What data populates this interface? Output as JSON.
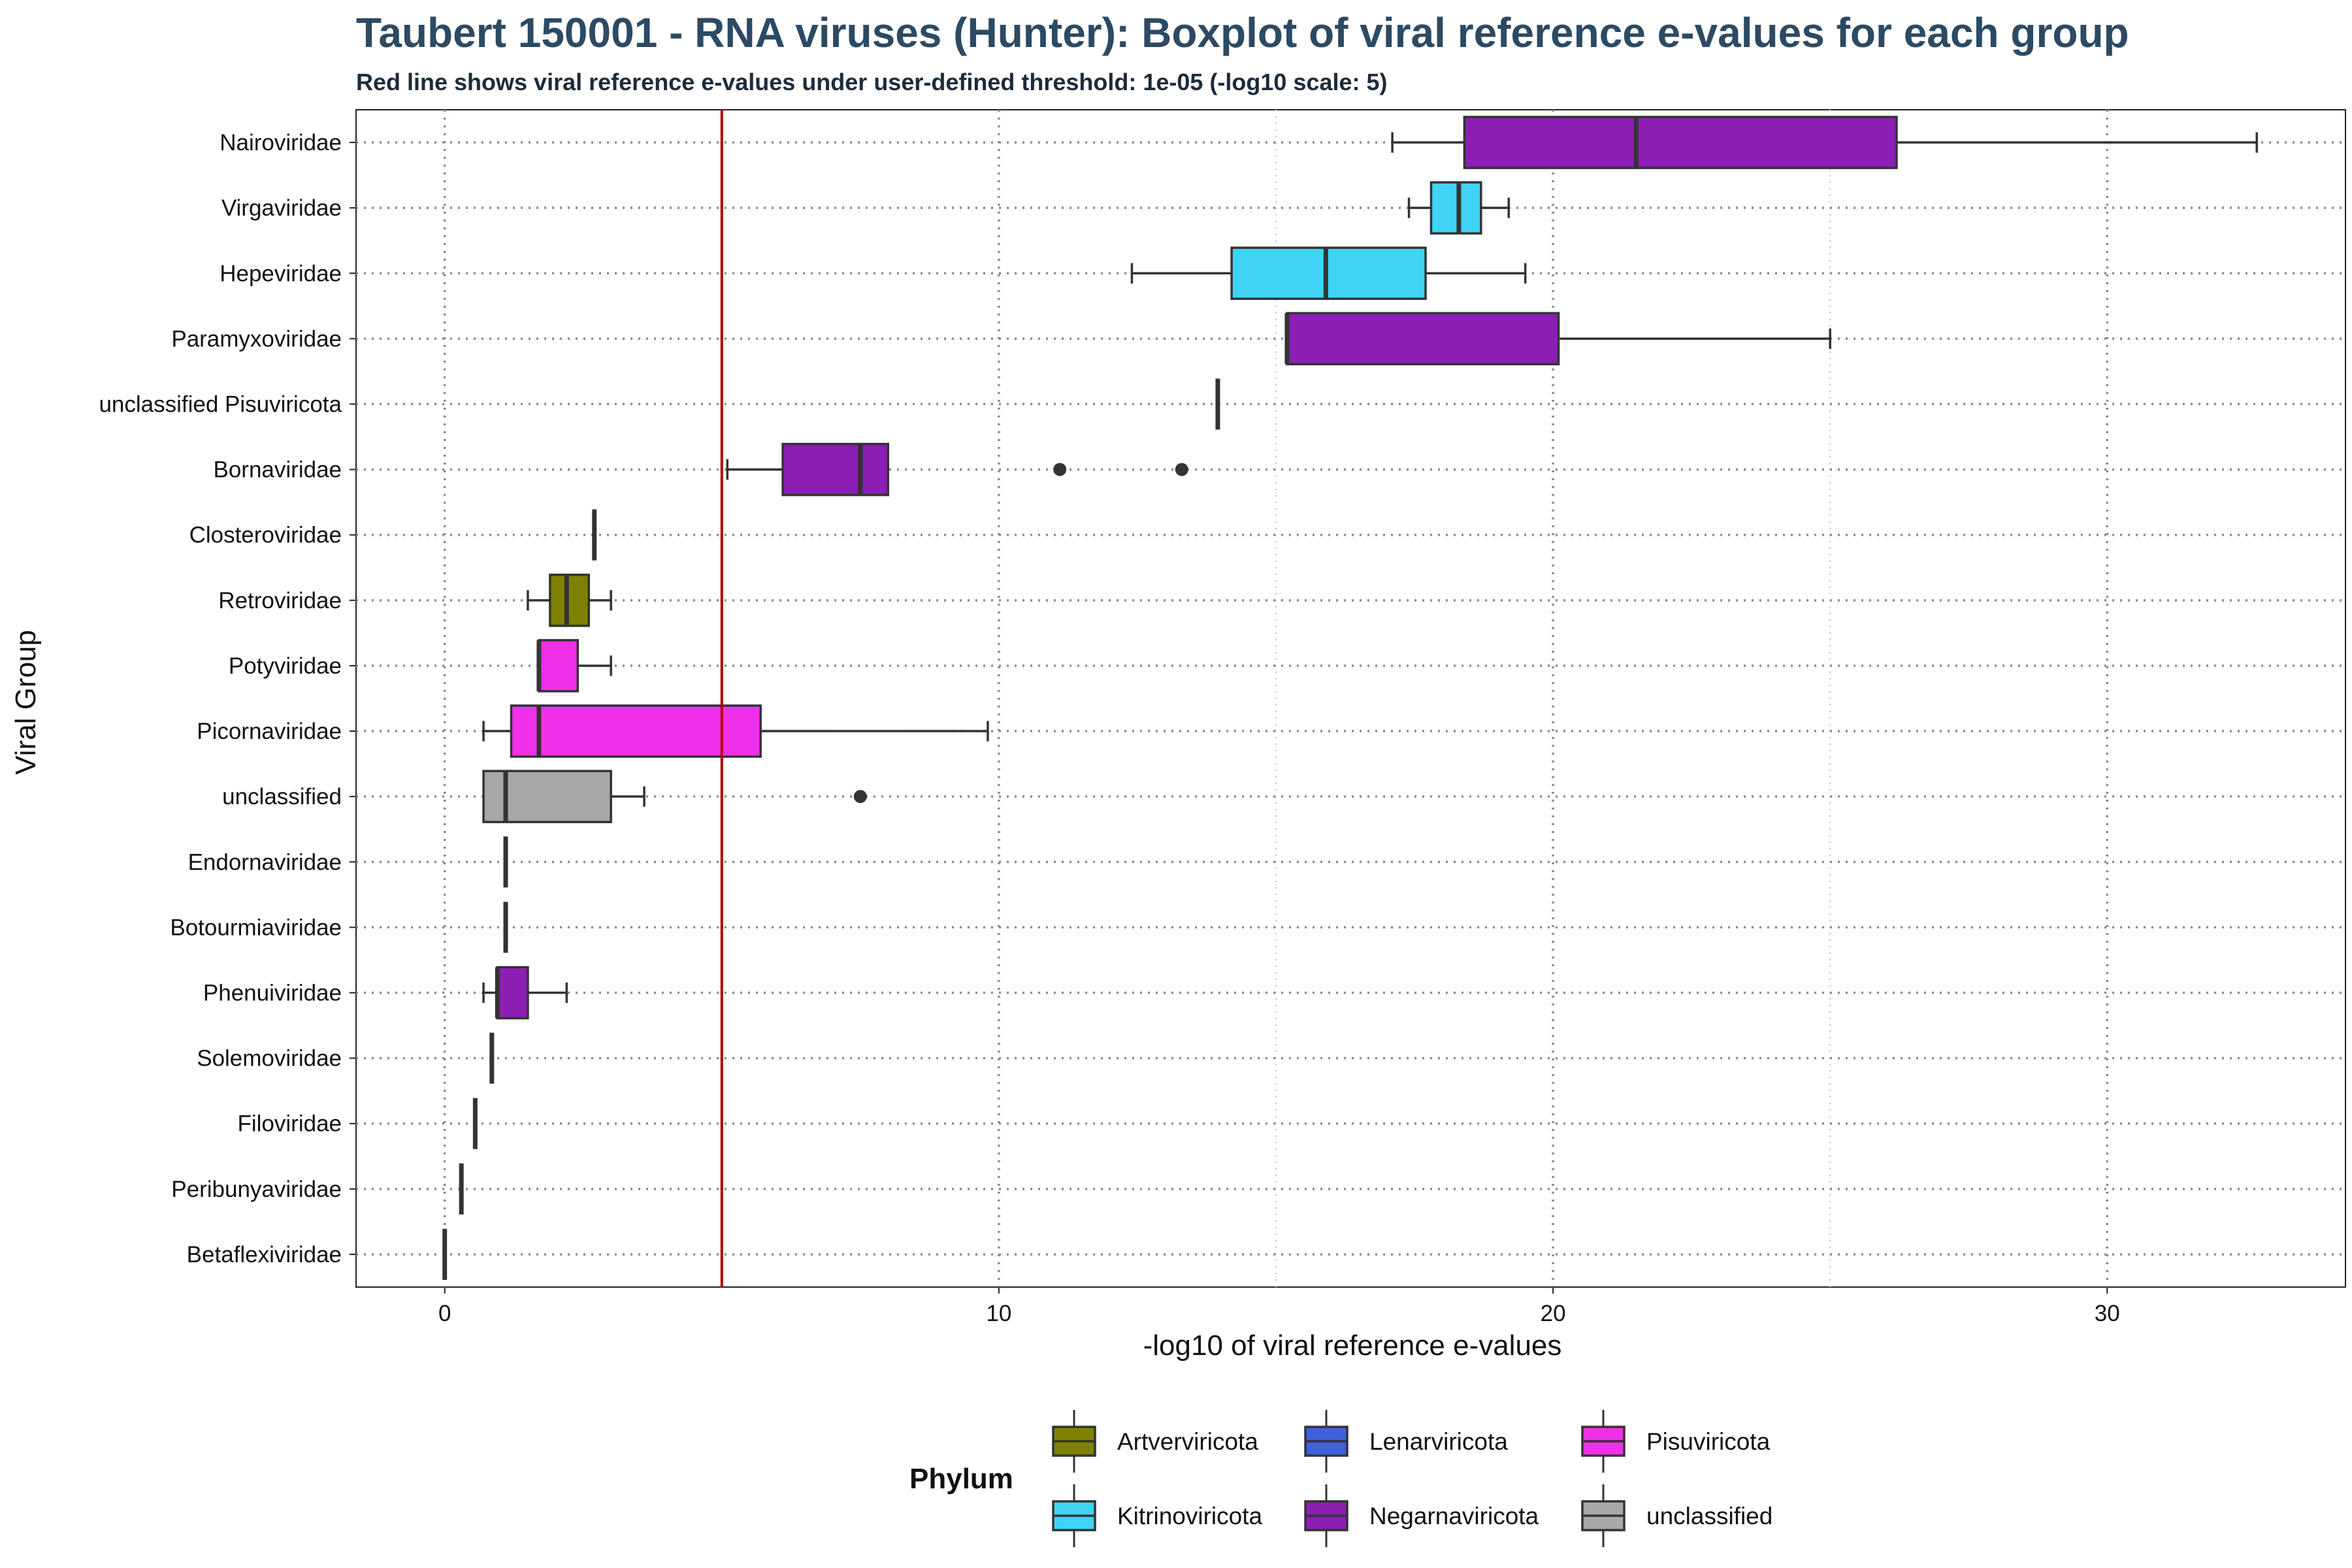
{
  "chart_data": {
    "type": "boxplot",
    "title": "Taubert 150001 - RNA viruses (Hunter): Boxplot of viral reference e-values for each group",
    "subtitle": "Red line shows viral reference e-values under user-defined threshold: 1e-05 (-log10 scale: 5)",
    "xlabel": "-log10 of viral reference e-values",
    "ylabel": "Viral Group",
    "xlim": [
      -1.6,
      34.3
    ],
    "x_ticks": [
      0,
      10,
      20,
      30
    ],
    "threshold": {
      "value": 5,
      "color": "#b30000"
    },
    "grid": true,
    "legend": {
      "title": "Phylum",
      "position": "bottom"
    },
    "phyla": [
      {
        "name": "Artverviricota",
        "color": "#808000"
      },
      {
        "name": "Lenarviricota",
        "color": "#4060dc"
      },
      {
        "name": "Pisuviricota",
        "color": "#f030e8"
      },
      {
        "name": "Kitrinoviricota",
        "color": "#40d4f4"
      },
      {
        "name": "Negarnaviricota",
        "color": "#8c1eb4"
      },
      {
        "name": "unclassified",
        "color": "#a8a8a8"
      }
    ],
    "categories": [
      "Nairoviridae",
      "Virgaviridae",
      "Hepeviridae",
      "Paramyxoviridae",
      "unclassified Pisuviricota",
      "Bornaviridae",
      "Closteroviridae",
      "Retroviridae",
      "Potyviridae",
      "Picornaviridae",
      "unclassified",
      "Endornaviridae",
      "Botourmiaviridae",
      "Phenuiviridae",
      "Solemoviridae",
      "Filoviridae",
      "Peribunyaviridae",
      "Betaflexiviridae"
    ],
    "boxes": [
      {
        "group": "Nairoviridae",
        "phylum": "Negarnaviricota",
        "whisker_low": 17.1,
        "q1": 18.4,
        "median": 21.5,
        "q3": 26.2,
        "whisker_high": 32.7,
        "outliers": []
      },
      {
        "group": "Virgaviridae",
        "phylum": "Kitrinoviricota",
        "whisker_low": 17.4,
        "q1": 17.8,
        "median": 18.3,
        "q3": 18.7,
        "whisker_high": 19.2,
        "outliers": []
      },
      {
        "group": "Hepeviridae",
        "phylum": "Kitrinoviricota",
        "whisker_low": 12.4,
        "q1": 14.2,
        "median": 15.9,
        "q3": 17.7,
        "whisker_high": 19.5,
        "outliers": []
      },
      {
        "group": "Paramyxoviridae",
        "phylum": "Negarnaviricota",
        "whisker_low": 15.2,
        "q1": 15.2,
        "median": 15.2,
        "q3": 20.1,
        "whisker_high": 25.0,
        "outliers": []
      },
      {
        "group": "unclassified Pisuviricota",
        "phylum": "Pisuviricota",
        "whisker_low": 13.95,
        "q1": 13.95,
        "median": 13.95,
        "q3": 13.95,
        "whisker_high": 13.95,
        "outliers": []
      },
      {
        "group": "Bornaviridae",
        "phylum": "Negarnaviricota",
        "whisker_low": 5.1,
        "q1": 6.1,
        "median": 7.5,
        "q3": 8.0,
        "whisker_high": 8.0,
        "outliers": [
          11.1,
          13.3
        ]
      },
      {
        "group": "Closteroviridae",
        "phylum": "Kitrinoviricota",
        "whisker_low": 2.7,
        "q1": 2.7,
        "median": 2.7,
        "q3": 2.7,
        "whisker_high": 2.7,
        "outliers": []
      },
      {
        "group": "Retroviridae",
        "phylum": "Artverviricota",
        "whisker_low": 1.5,
        "q1": 1.9,
        "median": 2.2,
        "q3": 2.6,
        "whisker_high": 3.0,
        "outliers": []
      },
      {
        "group": "Potyviridae",
        "phylum": "Pisuviricota",
        "whisker_low": 1.7,
        "q1": 1.7,
        "median": 1.7,
        "q3": 2.4,
        "whisker_high": 3.0,
        "outliers": []
      },
      {
        "group": "Picornaviridae",
        "phylum": "Pisuviricota",
        "whisker_low": 0.7,
        "q1": 1.2,
        "median": 1.7,
        "q3": 5.7,
        "whisker_high": 9.8,
        "outliers": []
      },
      {
        "group": "unclassified",
        "phylum": "unclassified",
        "whisker_low": 0.7,
        "q1": 0.7,
        "median": 1.1,
        "q3": 3.0,
        "whisker_high": 3.6,
        "outliers": [
          7.5
        ]
      },
      {
        "group": "Endornaviridae",
        "phylum": "Lenarviricota",
        "whisker_low": 1.1,
        "q1": 1.1,
        "median": 1.1,
        "q3": 1.1,
        "whisker_high": 1.1,
        "outliers": []
      },
      {
        "group": "Botourmiaviridae",
        "phylum": "Lenarviricota",
        "whisker_low": 1.1,
        "q1": 1.1,
        "median": 1.1,
        "q3": 1.1,
        "whisker_high": 1.1,
        "outliers": []
      },
      {
        "group": "Phenuiviridae",
        "phylum": "Negarnaviricota",
        "whisker_low": 0.7,
        "q1": 0.95,
        "median": 0.95,
        "q3": 1.5,
        "whisker_high": 2.2,
        "outliers": []
      },
      {
        "group": "Solemoviridae",
        "phylum": "Pisuviricota",
        "whisker_low": 0.85,
        "q1": 0.85,
        "median": 0.85,
        "q3": 0.85,
        "whisker_high": 0.85,
        "outliers": []
      },
      {
        "group": "Filoviridae",
        "phylum": "Negarnaviricota",
        "whisker_low": 0.55,
        "q1": 0.55,
        "median": 0.55,
        "q3": 0.55,
        "whisker_high": 0.55,
        "outliers": []
      },
      {
        "group": "Peribunyaviridae",
        "phylum": "Negarnaviricota",
        "whisker_low": 0.3,
        "q1": 0.3,
        "median": 0.3,
        "q3": 0.3,
        "whisker_high": 0.3,
        "outliers": []
      },
      {
        "group": "Betaflexiviridae",
        "phylum": "Kitrinoviricota",
        "whisker_low": 0.0,
        "q1": 0.0,
        "median": 0.0,
        "q3": 0.0,
        "whisker_high": 0.0,
        "outliers": []
      }
    ]
  }
}
